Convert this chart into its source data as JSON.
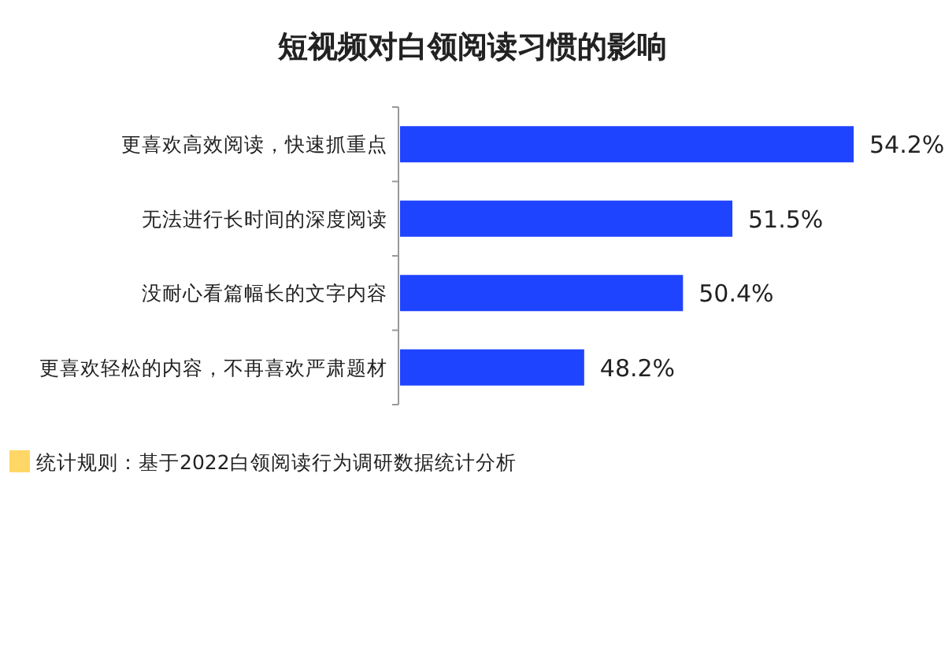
{
  "chart_data": {
    "type": "bar",
    "orientation": "horizontal",
    "title": "短视频对白领阅读习惯的影响",
    "categories": [
      "更喜欢高效阅读，快速抓重点",
      "无法进行长时间的深度阅读",
      "没耐心看篇幅长的文字内容",
      "更喜欢轻松的内容，不再喜欢严肃题材"
    ],
    "values": [
      54.2,
      51.5,
      50.4,
      48.2
    ],
    "color": "#1f44ff",
    "xlim": [
      44.1,
      54.2
    ],
    "data_labels": true,
    "tick_labels": "y",
    "value_labels": [
      "54.2%",
      "51.5%",
      "50.4%",
      "48.2%"
    ],
    "annotations": [
      "统计规则：基于2022白领阅读行为调研数据统计分析"
    ]
  }
}
